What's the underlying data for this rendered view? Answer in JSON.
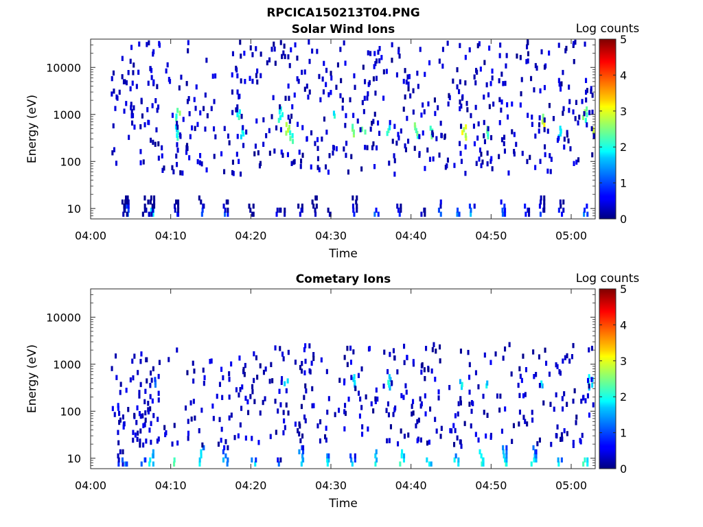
{
  "figure_title": "RPCICA150213T04.PNG",
  "chart_data": [
    {
      "type": "heatmap",
      "title": "Solar Wind Ions",
      "xlabel": "Time",
      "ylabel": "Energy (eV)",
      "colorbar_label": "Log counts",
      "colorbar_ticks": [
        "0",
        "1",
        "2",
        "3",
        "4",
        "5"
      ],
      "colorbar_range": [
        0,
        5
      ],
      "y_scale": "log",
      "ylim": [
        6,
        40000
      ],
      "y_ticks": [
        "10",
        "100",
        "1000",
        "10000"
      ],
      "x_ticks": [
        "04:00",
        "04:10",
        "04:20",
        "04:30",
        "04:40",
        "04:50",
        "05:00"
      ],
      "xlim_minutes": [
        0,
        63
      ],
      "grid": false,
      "low_energy_bursts": [
        {
          "t": 3.9,
          "e": 8,
          "v": 0.6
        },
        {
          "t": 4.3,
          "e": 10,
          "v": 1.4
        },
        {
          "t": 4.2,
          "e": 25,
          "v": 0.5
        },
        {
          "t": 6.5,
          "e": 9,
          "v": 0.4
        },
        {
          "t": 6.9,
          "e": 10,
          "v": 0.8
        },
        {
          "t": 7.4,
          "e": 10,
          "v": 1.8
        },
        {
          "t": 7.5,
          "e": 25,
          "v": 0.5
        },
        {
          "t": 10.5,
          "e": 9,
          "v": 1.0
        },
        {
          "t": 13.7,
          "e": 9,
          "v": 1.0
        },
        {
          "t": 16.7,
          "e": 10,
          "v": 1.0
        },
        {
          "t": 19.9,
          "e": 9,
          "v": 0.6
        },
        {
          "t": 23.2,
          "e": 10,
          "v": 0.6
        },
        {
          "t": 23.8,
          "e": 12,
          "v": 0.7
        },
        {
          "t": 26.0,
          "e": 10,
          "v": 0.8
        },
        {
          "t": 27.8,
          "e": 12,
          "v": 0.5
        },
        {
          "t": 29.5,
          "e": 12,
          "v": 0.6
        },
        {
          "t": 32.8,
          "e": 12,
          "v": 0.9
        },
        {
          "t": 35.5,
          "e": 12,
          "v": 1.2
        },
        {
          "t": 38.3,
          "e": 12,
          "v": 1.0
        },
        {
          "t": 41.3,
          "e": 12,
          "v": 0.6
        },
        {
          "t": 43.5,
          "e": 12,
          "v": 1.1
        },
        {
          "t": 45.6,
          "e": 12,
          "v": 1.2
        },
        {
          "t": 47.5,
          "e": 12,
          "v": 1.5
        },
        {
          "t": 51.3,
          "e": 12,
          "v": 1.4
        },
        {
          "t": 54.3,
          "e": 12,
          "v": 1.0
        },
        {
          "t": 56.2,
          "e": 12,
          "v": 1.0
        },
        {
          "t": 58.6,
          "e": 12,
          "v": 0.8
        },
        {
          "t": 61.6,
          "e": 12,
          "v": 1.3
        }
      ],
      "mid_energy_bursts": [
        {
          "t": 10.8,
          "e": 1200,
          "v": 2.3
        },
        {
          "t": 10.6,
          "e": 500,
          "v": 2.0
        },
        {
          "t": 18.3,
          "e": 1200,
          "v": 2.0
        },
        {
          "t": 18.8,
          "e": 500,
          "v": 1.8
        },
        {
          "t": 23.6,
          "e": 1200,
          "v": 2.2
        },
        {
          "t": 24.5,
          "e": 600,
          "v": 2.6
        },
        {
          "t": 25.0,
          "e": 400,
          "v": 2.3
        },
        {
          "t": 30.2,
          "e": 1200,
          "v": 1.9
        },
        {
          "t": 32.8,
          "e": 550,
          "v": 2.3
        },
        {
          "t": 34.0,
          "e": 550,
          "v": 2.4
        },
        {
          "t": 37.0,
          "e": 550,
          "v": 2.0
        },
        {
          "t": 40.5,
          "e": 550,
          "v": 2.2
        },
        {
          "t": 42.5,
          "e": 500,
          "v": 2.4
        },
        {
          "t": 46.5,
          "e": 500,
          "v": 2.8
        },
        {
          "t": 49.6,
          "e": 500,
          "v": 2.4
        },
        {
          "t": 56.3,
          "e": 900,
          "v": 2.8
        },
        {
          "t": 58.5,
          "e": 500,
          "v": 1.8
        },
        {
          "t": 61.6,
          "e": 1200,
          "v": 2.4
        },
        {
          "t": 62.5,
          "e": 550,
          "v": 2.8
        }
      ]
    },
    {
      "type": "heatmap",
      "title": "Cometary Ions",
      "xlabel": "Time",
      "ylabel": "Energy (eV)",
      "colorbar_label": "Log counts",
      "colorbar_ticks": [
        "0",
        "1",
        "2",
        "3",
        "4",
        "5"
      ],
      "colorbar_range": [
        0,
        5
      ],
      "y_scale": "log",
      "ylim": [
        6,
        40000
      ],
      "y_ticks": [
        "10",
        "100",
        "1000",
        "10000"
      ],
      "x_ticks": [
        "04:00",
        "04:10",
        "04:20",
        "04:30",
        "04:40",
        "04:50",
        "05:00"
      ],
      "xlim_minutes": [
        0,
        63
      ],
      "grid": false,
      "low_energy_bursts": [
        {
          "t": 3.6,
          "e": 8,
          "v": 1.0
        },
        {
          "t": 4.1,
          "e": 9,
          "v": 1.6
        },
        {
          "t": 6.4,
          "e": 9,
          "v": 1.4
        },
        {
          "t": 7.4,
          "e": 10,
          "v": 2.2
        },
        {
          "t": 10.5,
          "e": 9,
          "v": 2.3
        },
        {
          "t": 13.7,
          "e": 10,
          "v": 2.2
        },
        {
          "t": 16.7,
          "e": 10,
          "v": 1.7
        },
        {
          "t": 20.2,
          "e": 10,
          "v": 1.8
        },
        {
          "t": 23.3,
          "e": 10,
          "v": 1.2
        },
        {
          "t": 26.1,
          "e": 10,
          "v": 2.0
        },
        {
          "t": 29.3,
          "e": 10,
          "v": 2.0
        },
        {
          "t": 32.6,
          "e": 10,
          "v": 1.6
        },
        {
          "t": 35.6,
          "e": 10,
          "v": 2.0
        },
        {
          "t": 38.7,
          "e": 10,
          "v": 2.3
        },
        {
          "t": 42.1,
          "e": 10,
          "v": 2.3
        },
        {
          "t": 45.5,
          "e": 10,
          "v": 2.0
        },
        {
          "t": 48.6,
          "e": 10,
          "v": 2.4
        },
        {
          "t": 51.5,
          "e": 10,
          "v": 2.4
        },
        {
          "t": 55.2,
          "e": 10,
          "v": 2.0
        },
        {
          "t": 58.4,
          "e": 10,
          "v": 2.0
        },
        {
          "t": 61.6,
          "e": 10,
          "v": 2.2
        }
      ],
      "mid_energy_bursts": [
        {
          "t": 3.2,
          "e": 150,
          "v": 0.5
        },
        {
          "t": 4.0,
          "e": 60,
          "v": 0.8
        },
        {
          "t": 7.8,
          "e": 500,
          "v": 0.9
        },
        {
          "t": 24.3,
          "e": 500,
          "v": 1.8
        },
        {
          "t": 32.8,
          "e": 500,
          "v": 1.6
        },
        {
          "t": 37.2,
          "e": 500,
          "v": 1.7
        },
        {
          "t": 46.2,
          "e": 450,
          "v": 1.6
        },
        {
          "t": 49.5,
          "e": 450,
          "v": 1.7
        },
        {
          "t": 56.2,
          "e": 450,
          "v": 1.8
        },
        {
          "t": 62.3,
          "e": 500,
          "v": 1.8
        }
      ]
    }
  ]
}
